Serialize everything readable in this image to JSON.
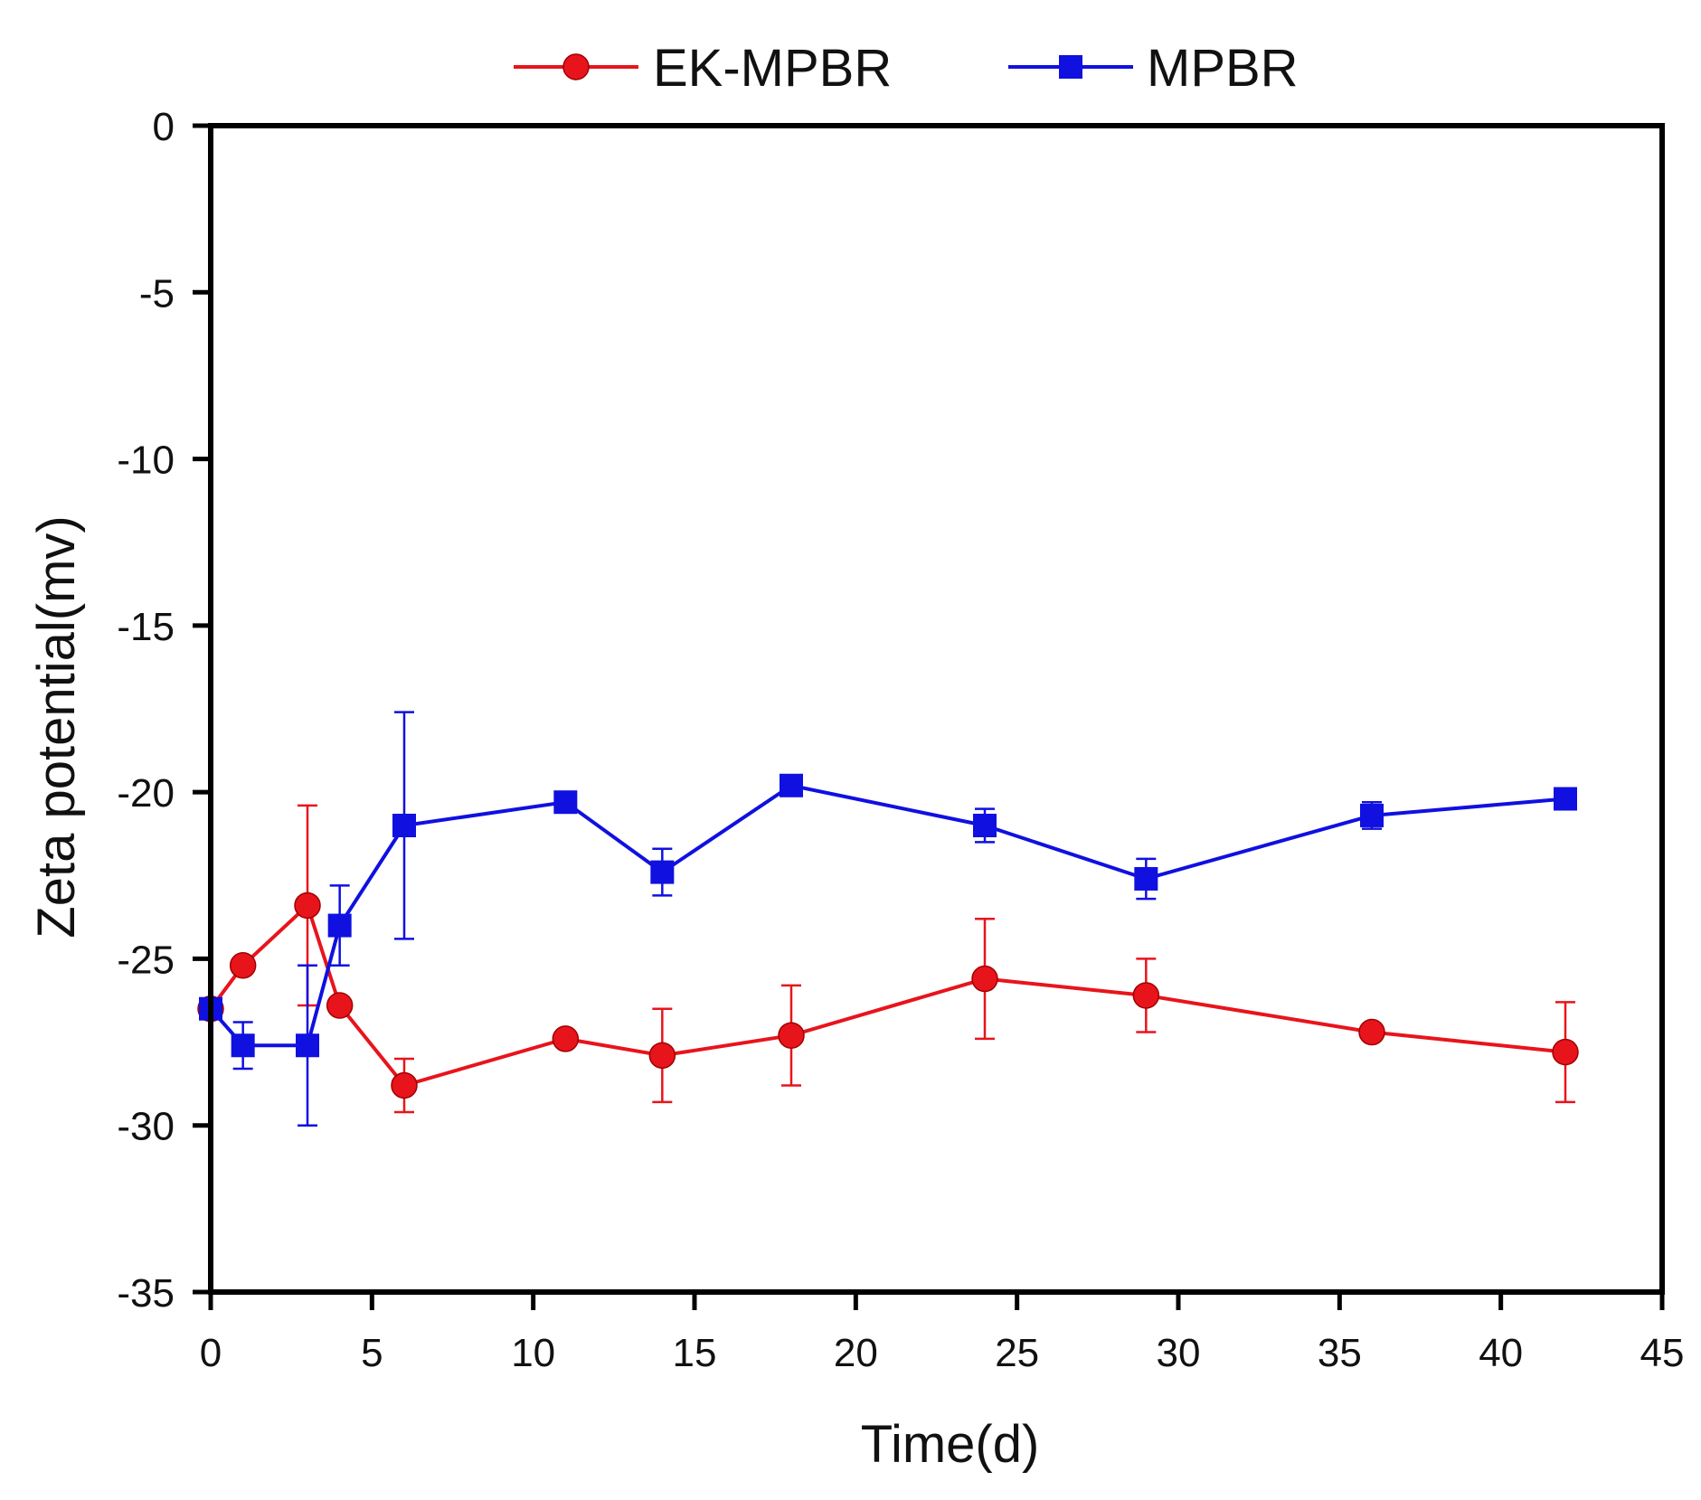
{
  "chart_data": {
    "type": "line",
    "title": "",
    "xlabel": "Time(d)",
    "ylabel": "Zeta potential(mv)",
    "xlim": [
      0,
      45
    ],
    "ylim": [
      -35,
      0
    ],
    "xticks": [
      0,
      5,
      10,
      15,
      20,
      25,
      30,
      35,
      40,
      45
    ],
    "yticks": [
      0,
      -5,
      -10,
      -15,
      -20,
      -25,
      -30,
      -35
    ],
    "xtick_labels": [
      "0",
      "5",
      "10",
      "15",
      "20",
      "25",
      "30",
      "35",
      "40",
      "45"
    ],
    "ytick_labels": [
      "0",
      "-5",
      "-10",
      "-15",
      "-20",
      "-25",
      "-30",
      "-35"
    ],
    "grid": false,
    "legend_position": "top-center",
    "series": [
      {
        "name": "EK-MPBR",
        "color": "#e8141c",
        "marker": "circle",
        "x": [
          0,
          1,
          3,
          4,
          6,
          11,
          14,
          18,
          24,
          29,
          36,
          42
        ],
        "y": [
          -26.5,
          -25.2,
          -23.4,
          -26.4,
          -28.8,
          -27.4,
          -27.9,
          -27.3,
          -25.6,
          -26.1,
          -27.2,
          -27.8
        ],
        "error": [
          0,
          0,
          3.0,
          0,
          0.8,
          0,
          1.4,
          1.5,
          1.8,
          1.1,
          0,
          1.5
        ]
      },
      {
        "name": "MPBR",
        "color": "#1010e0",
        "marker": "square",
        "x": [
          0,
          1,
          3,
          4,
          6,
          11,
          14,
          18,
          24,
          29,
          36,
          42
        ],
        "y": [
          -26.5,
          -27.6,
          -27.6,
          -24.0,
          -21.0,
          -20.3,
          -22.4,
          -19.8,
          -21.0,
          -22.6,
          -20.7,
          -20.2
        ],
        "error": [
          0,
          0.7,
          2.4,
          1.2,
          3.4,
          0,
          0.7,
          0,
          0.5,
          0.6,
          0.4,
          0
        ]
      }
    ]
  }
}
